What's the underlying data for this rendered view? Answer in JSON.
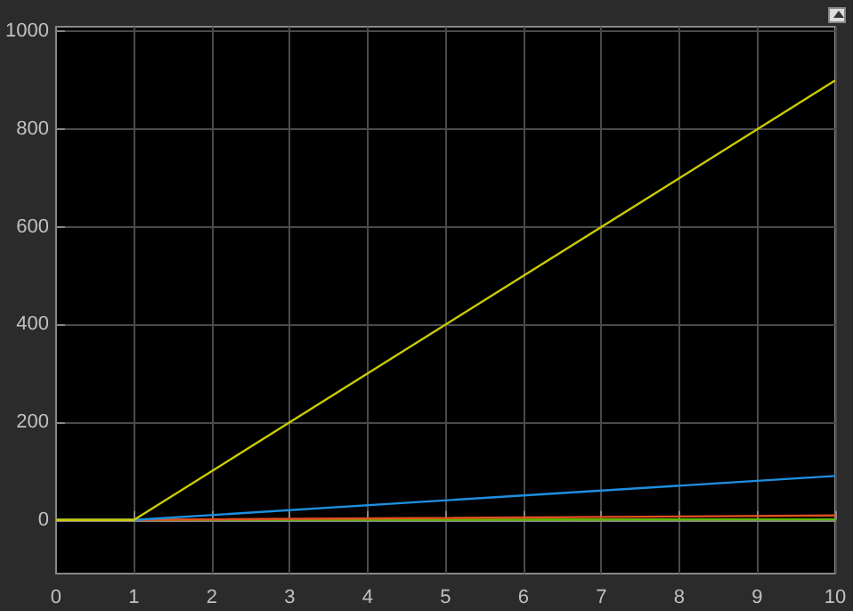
{
  "chart_data": {
    "type": "line",
    "x": [
      0,
      1,
      10
    ],
    "series": [
      {
        "color": "#5fb800",
        "values": [
          0,
          0,
          1
        ]
      },
      {
        "color": "#e0501e",
        "values": [
          0,
          0,
          9
        ]
      },
      {
        "color": "#1e8fe0",
        "values": [
          0,
          0,
          90
        ]
      },
      {
        "color": "#cccc00",
        "values": [
          0,
          0,
          900
        ]
      }
    ],
    "xlim": [
      0,
      10
    ],
    "xticks": [
      0,
      1,
      2,
      3,
      4,
      5,
      6,
      7,
      8,
      9,
      10
    ],
    "ylim": [
      -110,
      1010
    ],
    "yticks": [
      0,
      200,
      400,
      600,
      800,
      1000
    ],
    "grid": true,
    "marker": "none",
    "line_style": "solid"
  }
}
